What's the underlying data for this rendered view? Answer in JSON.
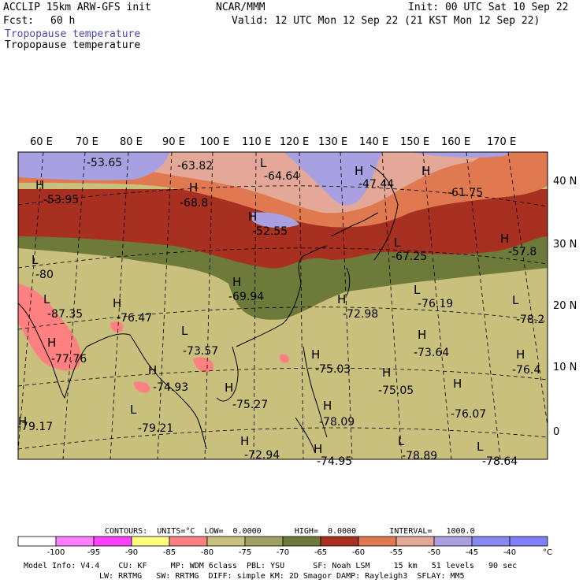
{
  "header": {
    "model": "ACCLIP 15km ARW-GFS init",
    "org": "NCAR/MMM",
    "init": "Init: 00 UTC Sat 10 Sep 22",
    "fcst_label": "Fcst:",
    "fcst_value": "60 h",
    "valid": "Valid: 12 UTC Mon 12 Sep 22 (21 KST Mon 12 Sep 22)",
    "field_title": "Tropopause temperature",
    "field_subtitle": "Tropopause temperature"
  },
  "map": {
    "lon_labels": [
      "60 E",
      "70 E",
      "80 E",
      "90 E",
      "100 E",
      "110 E",
      "120 E",
      "130 E",
      "140 E",
      "150 E",
      "160 E",
      "170 E"
    ],
    "lat_labels": [
      "40 N",
      "30 N",
      "20 N",
      "10 N",
      "0"
    ],
    "annotations": [
      {
        "t": "-53.65"
      },
      {
        "t": "-63.82"
      },
      {
        "t": "L"
      },
      {
        "t": "-64.64"
      },
      {
        "t": "H"
      },
      {
        "t": "-47.44"
      },
      {
        "t": "H"
      },
      {
        "t": "-61.75"
      },
      {
        "t": "H"
      },
      {
        "t": "-53.95"
      },
      {
        "t": "H"
      },
      {
        "t": "-68.8"
      },
      {
        "t": "H"
      },
      {
        "t": "-52.55"
      },
      {
        "t": "L"
      },
      {
        "t": "-67.25"
      },
      {
        "t": "H"
      },
      {
        "t": "-57.8"
      },
      {
        "t": "L"
      },
      {
        "t": "-80"
      },
      {
        "t": "H"
      },
      {
        "t": "-69.94"
      },
      {
        "t": "H"
      },
      {
        "t": "-72.98"
      },
      {
        "t": "L"
      },
      {
        "t": "-76.19"
      },
      {
        "t": "L"
      },
      {
        "t": "-87.35"
      },
      {
        "t": "H"
      },
      {
        "t": "-76.47"
      },
      {
        "t": "L"
      },
      {
        "t": "-78.2"
      },
      {
        "t": "H"
      },
      {
        "t": "-77.76"
      },
      {
        "t": "L"
      },
      {
        "t": "-73.57"
      },
      {
        "t": "H"
      },
      {
        "t": "-73.64"
      },
      {
        "t": "H"
      },
      {
        "t": "-75.03"
      },
      {
        "t": "H"
      },
      {
        "t": "-76.4"
      },
      {
        "t": "H"
      },
      {
        "t": "-74.93"
      },
      {
        "t": "H"
      },
      {
        "t": "-75.05"
      },
      {
        "t": "H"
      },
      {
        "t": "-75.27"
      },
      {
        "t": "H"
      },
      {
        "t": "-76.07"
      },
      {
        "t": "H"
      },
      {
        "t": "-79.17"
      },
      {
        "t": "H"
      },
      {
        "t": "-78.09"
      },
      {
        "t": "L"
      },
      {
        "t": "-79.21"
      },
      {
        "t": "H"
      },
      {
        "t": "-72.94"
      },
      {
        "t": "H"
      },
      {
        "t": "-74.95"
      },
      {
        "t": "L"
      },
      {
        "t": "-78.89"
      },
      {
        "t": "L"
      },
      {
        "t": "-78.64"
      }
    ]
  },
  "footer": {
    "contours": "CONTOURS:  UNITS=°C  LOW=  0.0000       HIGH=  0.0000       INTERVAL=   1000.0",
    "colorbar_colors": [
      "#ffffff",
      "#ff80ff",
      "#ff40ff",
      "#ffff80",
      "#ff8080",
      "#c8c07c",
      "#a0a060",
      "#6e7a3a",
      "#a83020",
      "#e07850",
      "#e4a898",
      "#a8a0e0",
      "#8888f0",
      "#8080ff"
    ],
    "colorbar_labels": [
      "-100",
      "-95",
      "-90",
      "-85",
      "-80",
      "-75",
      "-70",
      "-65",
      "-60",
      "-55",
      "-50",
      "-45",
      "-40"
    ],
    "colorbar_unit": "°C",
    "model_info_1": "Model Info: V4.4    CU: KF     MP: WDM 6class  PBL: YSU      SF: Noah LSM     15 km   51 levels   90 sec",
    "model_info_2": "LW: RRTMG   SW: RRTMG  DIFF: simple KM: 2D Smagor DAMP: Rayleigh3  SFLAY: MM5"
  },
  "colors": {
    "purple": "#a8a0e0",
    "lightpink": "#e4a898",
    "orange": "#e07850",
    "darkred": "#a83020",
    "olivedark": "#6e7a3a",
    "khaki": "#c8c07c",
    "salmon": "#ff8080"
  }
}
